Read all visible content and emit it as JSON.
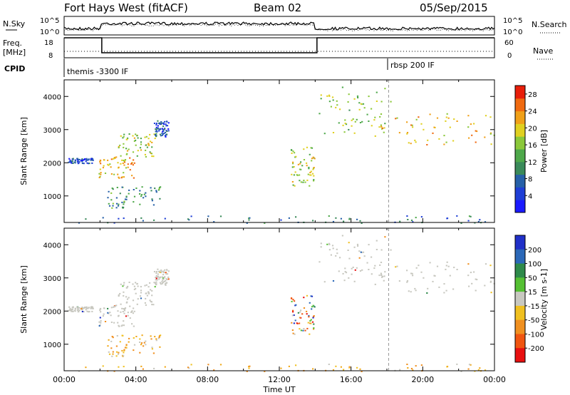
{
  "header": {
    "radar": "Fort Hays West (fitACF)",
    "beam": "Beam 02",
    "date": "05/Sep/2015"
  },
  "noise_panel": {
    "left_label": "N.Sky",
    "right_label": "N.Search",
    "left_ticks": [
      "10^5",
      "10^0"
    ],
    "right_ticks": [
      "10^5",
      "10^0"
    ]
  },
  "freq_panel": {
    "left_label_1": "Freq.",
    "left_label_2": "[MHz]",
    "right_label": "Nave",
    "left_ticks": [
      "18",
      "8"
    ],
    "right_ticks": [
      "60",
      "0"
    ],
    "freq_steps": [
      {
        "start_hour": 0.0,
        "end_hour": 2.1,
        "value": 18
      },
      {
        "start_hour": 2.1,
        "end_hour": 14.1,
        "value": 10.5
      },
      {
        "start_hour": 14.1,
        "end_hour": 24.0,
        "value": 18
      }
    ]
  },
  "cpid": {
    "label": "CPID",
    "programs": [
      {
        "name": "themis -3300 IF",
        "start_hour": 0.0
      },
      {
        "name": "rbsp 200 IF",
        "start_hour": 18.1
      }
    ]
  },
  "chart_data": [
    {
      "type": "heatmap",
      "name": "power",
      "ylabel": "Slant Range [km]",
      "xlabel": "",
      "xlim": [
        0,
        24
      ],
      "ylim": [
        200,
        4500
      ],
      "yticks": [
        "1000",
        "2000",
        "3000",
        "4000"
      ],
      "colorbar": {
        "label": "Power [dB]",
        "ticks": [
          "4",
          "8",
          "12",
          "16",
          "20",
          "24",
          "28"
        ],
        "range": [
          0,
          30
        ],
        "colors": [
          "#1a1aff",
          "#1f3fd6",
          "#2660a8",
          "#3a8a5a",
          "#4ea84a",
          "#8bc83a",
          "#e0d020",
          "#f0a018",
          "#f06a10",
          "#e81e0a"
        ]
      }
    },
    {
      "type": "heatmap",
      "name": "velocity",
      "ylabel": "Slant Range [km]",
      "xlabel": "Time UT",
      "xlim": [
        0,
        24
      ],
      "ylim": [
        200,
        4500
      ],
      "yticks": [
        "1000",
        "2000",
        "3000",
        "4000"
      ],
      "xticks": [
        "00:00",
        "04:00",
        "08:00",
        "12:00",
        "16:00",
        "20:00",
        "00:00"
      ],
      "colorbar": {
        "label": "Velocity [m s-1]",
        "ticks": [
          "200",
          "100",
          "50",
          "15",
          "-15",
          "-50",
          "-100",
          "-200"
        ],
        "colors": [
          "#2030c8",
          "#2b68b8",
          "#2e8a4a",
          "#55c033",
          "#c8c8c0",
          "#f0c020",
          "#f09020",
          "#f05510",
          "#e81010"
        ]
      }
    }
  ],
  "scatter_bands": [
    {
      "x": [
        0.2,
        1.6
      ],
      "r": [
        2000,
        2150
      ],
      "pow": 6,
      "vel": "ground"
    },
    {
      "x": [
        1.9,
        4.0
      ],
      "r": [
        1550,
        2200
      ],
      "pow": 22,
      "vel": "ground"
    },
    {
      "x": [
        3.0,
        5.1
      ],
      "r": [
        2200,
        2900
      ],
      "pow": 17,
      "vel": "ground"
    },
    {
      "x": [
        2.4,
        5.4
      ],
      "r": [
        650,
        1300
      ],
      "pow": 11,
      "vel": "neg"
    },
    {
      "x": [
        5.0,
        5.8
      ],
      "r": [
        2800,
        3300
      ],
      "pow": 6,
      "vel": "ground"
    },
    {
      "x": [
        12.6,
        14.0
      ],
      "r": [
        1300,
        2500
      ],
      "pow": 18,
      "vel": "mix"
    },
    {
      "x": [
        14.1,
        18.2
      ],
      "r": [
        2900,
        4300
      ],
      "pow": 16,
      "vel": "ground"
    },
    {
      "x": [
        17.3,
        24.0
      ],
      "r": [
        2550,
        3500
      ],
      "pow": 20,
      "vel": "ground"
    },
    {
      "x": [
        0.2,
        24.0
      ],
      "r": [
        200,
        420
      ],
      "pow": 8,
      "vel": "neg"
    }
  ]
}
